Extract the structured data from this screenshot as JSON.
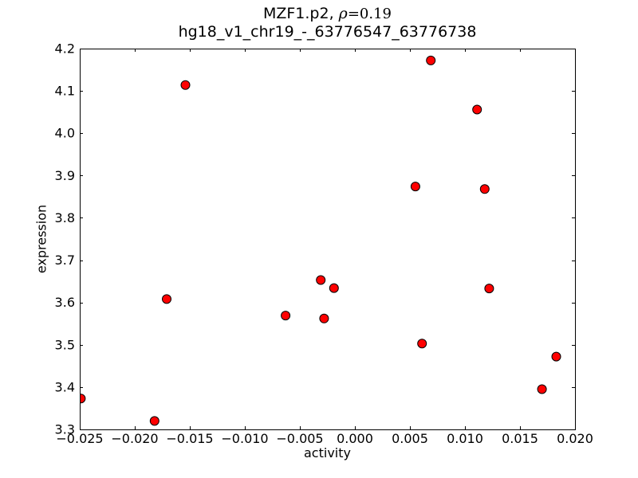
{
  "figure": {
    "background": "#ffffff"
  },
  "title": {
    "prefix": "MZF1.p2, ",
    "rho": "ρ",
    "value": "=0.19",
    "subtitle": "hg18_v1_chr19_-_63776547_63776738"
  },
  "chart_data": {
    "type": "scatter",
    "title": "MZF1.p2, ρ=0.19",
    "subtitle": "hg18_v1_chr19_-_63776547_63776738",
    "xlabel": "activity",
    "ylabel": "expression",
    "xlim": [
      -0.025,
      0.02
    ],
    "ylim": [
      3.3,
      4.2
    ],
    "grid": false,
    "legend": null,
    "xticks": {
      "values": [
        -0.025,
        -0.02,
        -0.015,
        -0.01,
        -0.005,
        0.0,
        0.005,
        0.01,
        0.015,
        0.02
      ],
      "labels": [
        "−0.025",
        "−0.020",
        "−0.015",
        "−0.010",
        "−0.005",
        "0.000",
        "0.005",
        "0.010",
        "0.015",
        "0.020"
      ]
    },
    "yticks": {
      "values": [
        3.3,
        3.4,
        3.5,
        3.6,
        3.7,
        3.8,
        3.9,
        4.0,
        4.1,
        4.2
      ],
      "labels": [
        "3.3",
        "3.4",
        "3.5",
        "3.6",
        "3.7",
        "3.8",
        "3.9",
        "4.0",
        "4.1",
        "4.2"
      ]
    },
    "marker": {
      "shape": "circle",
      "color": "#ff0000",
      "edge_color": "#000000",
      "radius_px": 5.5
    },
    "points": [
      {
        "activity": -0.0249,
        "expression": 3.373
      },
      {
        "activity": -0.0182,
        "expression": 3.32
      },
      {
        "activity": -0.0171,
        "expression": 3.608
      },
      {
        "activity": -0.0154,
        "expression": 4.114
      },
      {
        "activity": -0.0063,
        "expression": 3.569
      },
      {
        "activity": -0.0031,
        "expression": 3.653
      },
      {
        "activity": -0.0028,
        "expression": 3.562
      },
      {
        "activity": -0.0019,
        "expression": 3.634
      },
      {
        "activity": 0.0055,
        "expression": 3.874
      },
      {
        "activity": 0.0061,
        "expression": 3.503
      },
      {
        "activity": 0.0069,
        "expression": 4.172
      },
      {
        "activity": 0.0111,
        "expression": 4.056
      },
      {
        "activity": 0.0118,
        "expression": 3.868
      },
      {
        "activity": 0.0122,
        "expression": 3.633
      },
      {
        "activity": 0.017,
        "expression": 3.395
      },
      {
        "activity": 0.0183,
        "expression": 3.472
      }
    ]
  }
}
